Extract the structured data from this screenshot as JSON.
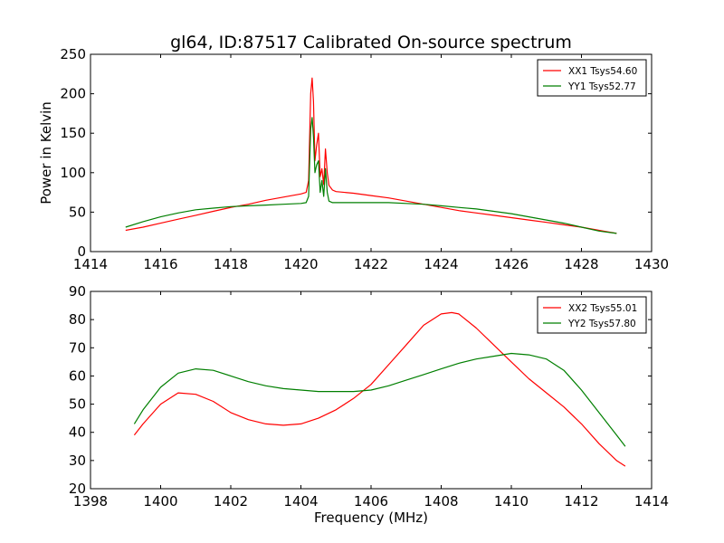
{
  "chart_data": {
    "type": "line",
    "title": "gl64, ID:87517 Calibrated On-source spectrum",
    "colors": {
      "red": "#ff0000",
      "green": "#007f00"
    },
    "subplots": [
      {
        "ylabel": "Power in Kelvin",
        "xlabel": "",
        "xlim": [
          1414,
          1430
        ],
        "ylim": [
          0,
          250
        ],
        "xticks": [
          "1414",
          "1416",
          "1418",
          "1420",
          "1422",
          "1424",
          "1426",
          "1428",
          "1430"
        ],
        "yticks": [
          "0",
          "50",
          "100",
          "150",
          "200",
          "250"
        ],
        "legend": "top-right",
        "series": [
          {
            "name": "XX1 Tsys54.60",
            "color": "#ff0000",
            "x": [
              1415.0,
              1415.5,
              1416.0,
              1416.5,
              1417.0,
              1417.5,
              1418.0,
              1418.5,
              1419.0,
              1419.5,
              1420.0,
              1420.15,
              1420.22,
              1420.28,
              1420.32,
              1420.36,
              1420.4,
              1420.45,
              1420.5,
              1420.55,
              1420.6,
              1420.65,
              1420.7,
              1420.75,
              1420.8,
              1420.9,
              1421.0,
              1421.5,
              1422.0,
              1422.5,
              1423.0,
              1423.5,
              1424.0,
              1424.5,
              1425.0,
              1425.5,
              1426.0,
              1426.5,
              1427.0,
              1427.5,
              1428.0,
              1428.5,
              1429.0
            ],
            "y": [
              27,
              31,
              36,
              41,
              46,
              51,
              56,
              60,
              65,
              69,
              73,
              75,
              90,
              200,
              220,
              190,
              115,
              135,
              150,
              95,
              105,
              85,
              130,
              100,
              84,
              78,
              76,
              74,
              71,
              68,
              64,
              60,
              56,
              52,
              49,
              46,
              43,
              40,
              37,
              34,
              31,
              27,
              23
            ],
            "dashed": false
          },
          {
            "name": "YY1 Tsys52.77",
            "color": "#007f00",
            "x": [
              1415.0,
              1415.5,
              1416.0,
              1416.5,
              1417.0,
              1417.5,
              1418.0,
              1418.5,
              1419.0,
              1419.5,
              1420.0,
              1420.15,
              1420.22,
              1420.28,
              1420.32,
              1420.36,
              1420.4,
              1420.45,
              1420.5,
              1420.55,
              1420.6,
              1420.65,
              1420.7,
              1420.75,
              1420.8,
              1420.9,
              1421.0,
              1421.5,
              1422.0,
              1422.5,
              1423.0,
              1423.5,
              1424.0,
              1424.5,
              1425.0,
              1425.5,
              1426.0,
              1426.5,
              1427.0,
              1427.5,
              1428.0,
              1428.5,
              1429.0
            ],
            "y": [
              31,
              38,
              44,
              49,
              53,
              55,
              57,
              58,
              59,
              60,
              61,
              62,
              70,
              155,
              170,
              145,
              100,
              110,
              115,
              75,
              90,
              70,
              105,
              75,
              64,
              62,
              62,
              62,
              62,
              62,
              61,
              60,
              58,
              56,
              54,
              51,
              48,
              44,
              40,
              36,
              31,
              26,
              23
            ],
            "dashed": false
          }
        ]
      },
      {
        "ylabel": "",
        "xlabel": "Frequency (MHz)",
        "xlim": [
          1398,
          1414
        ],
        "ylim": [
          20,
          90
        ],
        "xticks": [
          "1398",
          "1400",
          "1402",
          "1404",
          "1406",
          "1408",
          "1410",
          "1412",
          "1414"
        ],
        "yticks": [
          "20",
          "30",
          "40",
          "50",
          "60",
          "70",
          "80",
          "90"
        ],
        "legend": "top-right",
        "series": [
          {
            "name": "XX2 Tsys55.01",
            "color": "#ff0000",
            "x": [
              1399.25,
              1399.5,
              1400.0,
              1400.5,
              1401.0,
              1401.5,
              1402.0,
              1402.5,
              1403.0,
              1403.5,
              1404.0,
              1404.5,
              1405.0,
              1405.5,
              1406.0,
              1406.5,
              1407.0,
              1407.5,
              1408.0,
              1408.3,
              1408.5,
              1409.0,
              1409.5,
              1410.0,
              1410.5,
              1411.0,
              1411.5,
              1412.0,
              1412.5,
              1413.0,
              1413.25
            ],
            "y": [
              39,
              43,
              50,
              54,
              53.5,
              51,
              47,
              44.5,
              43,
              42.5,
              43,
              45,
              48,
              52,
              57,
              64,
              71,
              78,
              82,
              82.5,
              82,
              77,
              71,
              65,
              59,
              54,
              49,
              43,
              36,
              30,
              28
            ],
            "dashed": false
          },
          {
            "name": "YY2 Tsys57.80",
            "color": "#007f00",
            "x": [
              1399.25,
              1399.5,
              1400.0,
              1400.5,
              1401.0,
              1401.5,
              1402.0,
              1402.5,
              1403.0,
              1403.5,
              1404.0,
              1404.5,
              1405.0,
              1405.5,
              1406.0,
              1406.5,
              1407.0,
              1407.5,
              1408.0,
              1408.5,
              1409.0,
              1409.5,
              1410.0,
              1410.5,
              1411.0,
              1411.5,
              1412.0,
              1412.5,
              1413.0,
              1413.25
            ],
            "y": [
              43,
              48,
              56,
              61,
              62.5,
              62,
              60,
              58,
              56.5,
              55.5,
              55,
              54.5,
              54.5,
              54.5,
              55,
              56.5,
              58.5,
              60.5,
              62.5,
              64.5,
              66,
              67,
              68,
              67.5,
              66,
              62,
              55,
              47,
              39,
              35
            ],
            "dashed": false
          }
        ]
      }
    ]
  }
}
